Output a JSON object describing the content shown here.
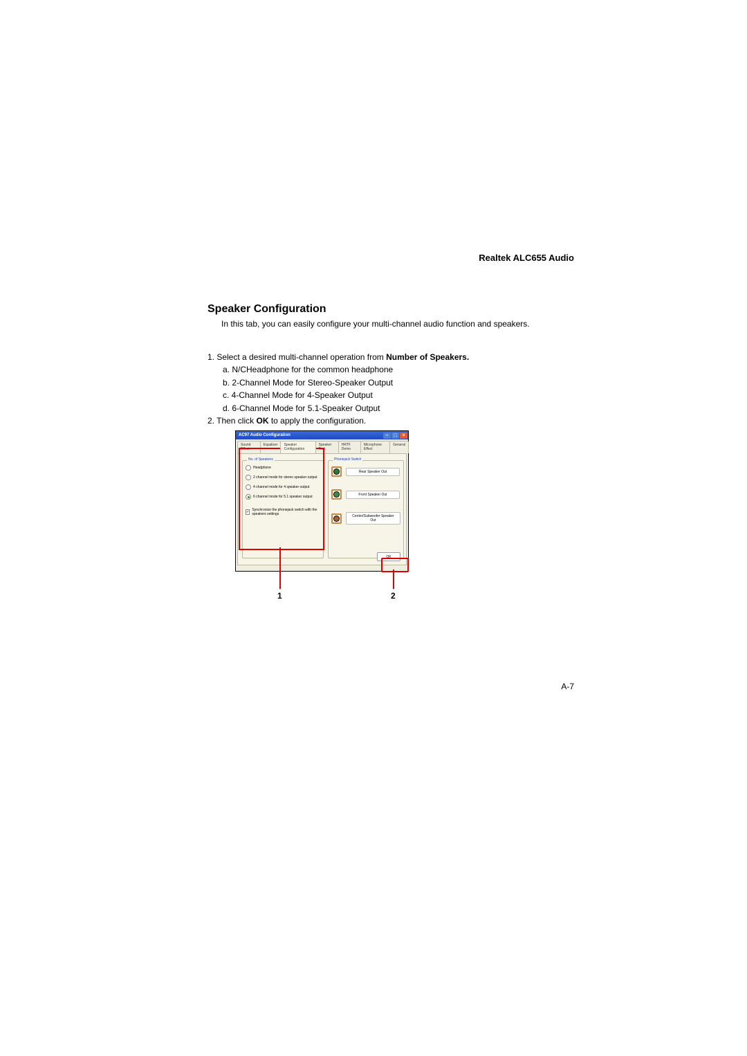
{
  "header": {
    "right": "Realtek ALC655 Audio"
  },
  "section": {
    "title": "Speaker Configuration"
  },
  "intro": {
    "text": "In this tab, you can easily configure your multi-channel audio function and speakers."
  },
  "list": {
    "item1_prefix": "1. Select a desired multi-channel operation from ",
    "item1_bold": "Number of Speakers.",
    "a": "a. N/CHeadphone for the common headphone",
    "b": "b. 2-Channel Mode for Stereo-Speaker Output",
    "c": "c. 4-Channel Mode for 4-Speaker Output",
    "d": "d. 6-Channel Mode for 5.1-Speaker Output",
    "item2_prefix": "2. Then click ",
    "item2_bold": "OK",
    "item2_suffix": " to apply the configuration."
  },
  "window": {
    "title": "AC97 Audio Configuration",
    "min": "–",
    "max": "□",
    "close": "×",
    "tabs": {
      "t1": "Sound Effect",
      "t2": "Equalizer",
      "t3": "Speaker Configuration",
      "t4": "Speaker Test",
      "t5": "HRTF Demo",
      "t6": "Microphone Effect",
      "t7": "General"
    },
    "group1": {
      "legend": "No. of Speakers",
      "o1": "Headphone",
      "o2": "2 channel mode for stereo speaker output",
      "o3": "4 channel mode for 4 speaker output",
      "o4": "6 channel mode for 5.1 speaker output",
      "sync": "Synchronize the phonejack switch with the speakers settings"
    },
    "group2": {
      "legend": "Phonejack Switch",
      "j1": "Rear Speaker Out",
      "j2": "Front Speaker Out",
      "j3": "Center/Subwoofer Speaker Out"
    },
    "ok": "OK"
  },
  "callouts": {
    "c1": "1",
    "c2": "2"
  },
  "pagenum": "A-7",
  "colors": {
    "red": "#e00000",
    "titlebar_start": "#3a6bd8",
    "titlebar_end": "#1e49c9",
    "panel_bg": "#f7f5e8",
    "panel_border": "#bdb99e"
  }
}
